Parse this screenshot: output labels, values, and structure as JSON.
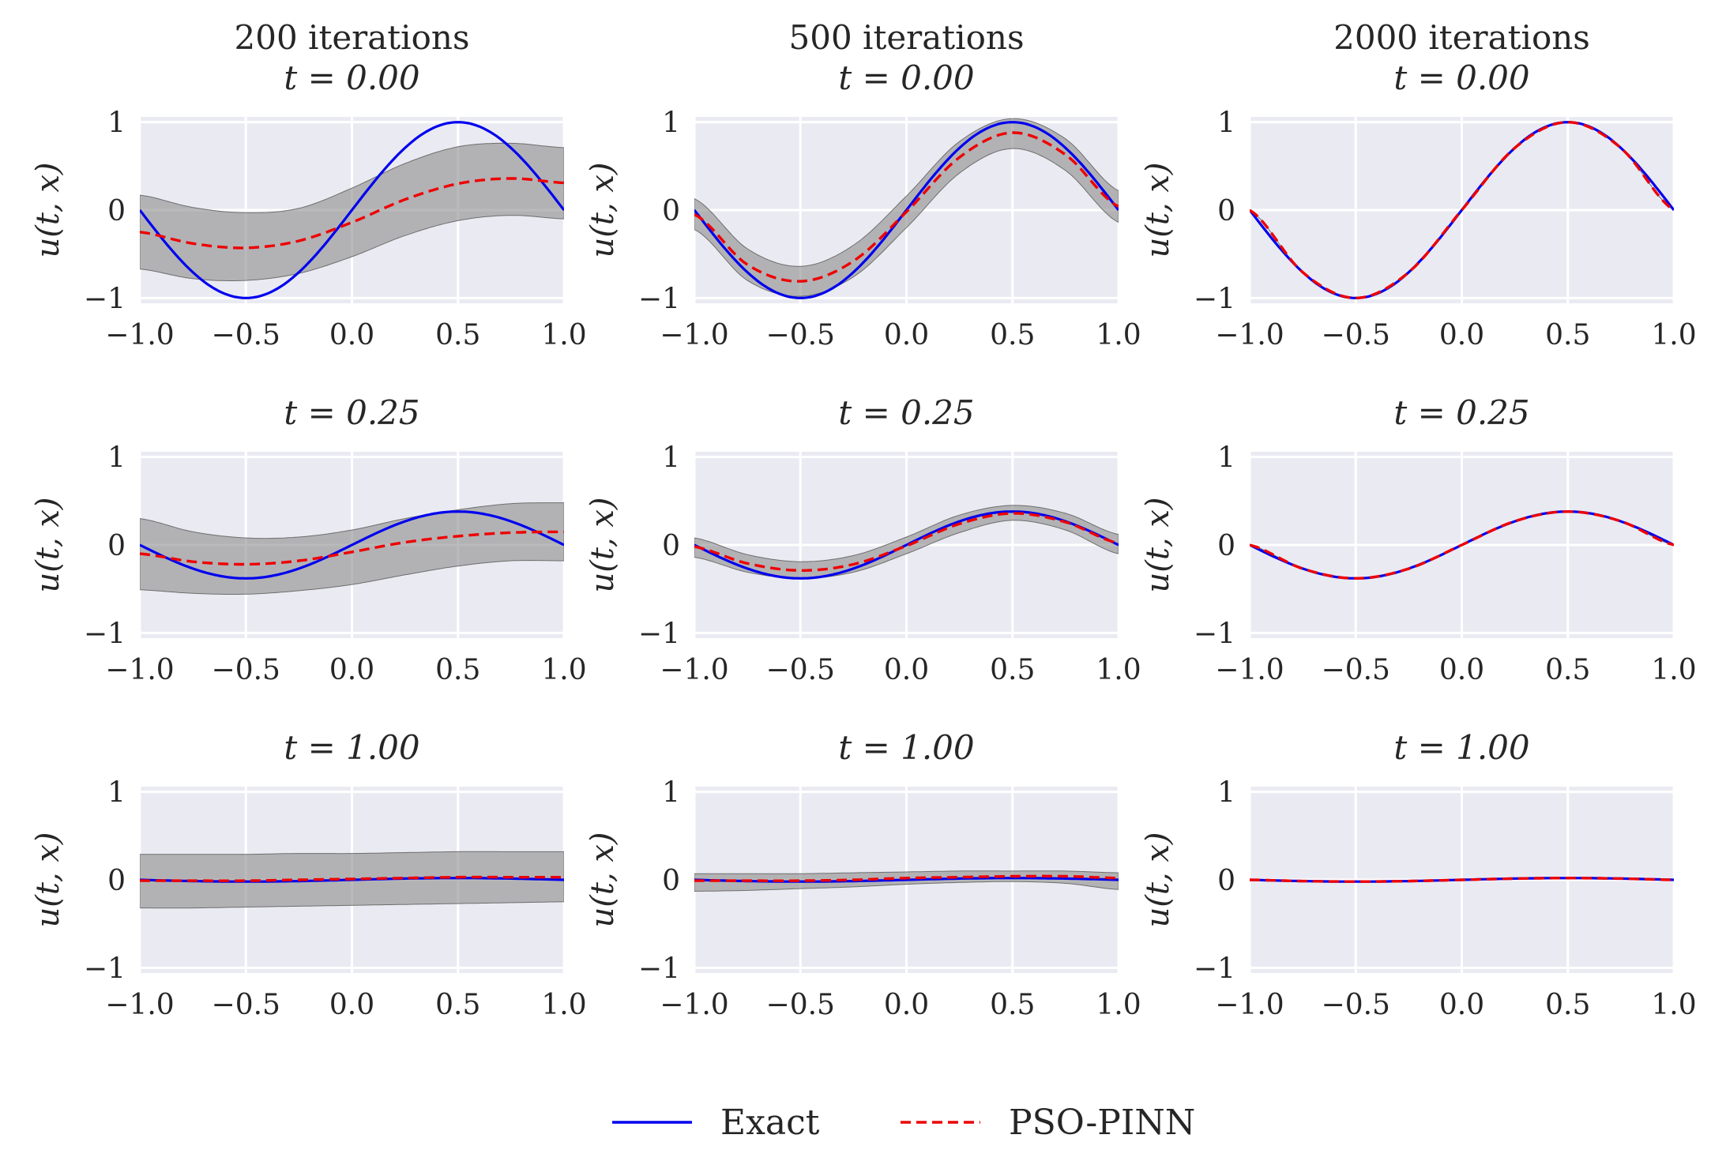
{
  "chart_data": {
    "type": "line",
    "grid": true,
    "rows": 3,
    "cols": 3,
    "xlim": [
      -1.0,
      1.0
    ],
    "ylim": [
      -1,
      1
    ],
    "xticks": [
      "−1.0",
      "−0.5",
      "0.0",
      "0.5",
      "1.0"
    ],
    "yticks": [
      "−1",
      "0",
      "1"
    ],
    "ylabel": "u(t, x)",
    "column_titles": [
      "200 iterations",
      "500 iterations",
      "2000 iterations"
    ],
    "row_titles": [
      "t = 0.00",
      "t = 0.25",
      "t = 1.00"
    ],
    "legend": {
      "placement": "bottom-center",
      "entries": [
        {
          "name": "Exact",
          "color": "#0000ee",
          "style": "solid"
        },
        {
          "name": "PSO-PINN",
          "color": "#ee0000",
          "style": "dashed"
        }
      ]
    },
    "colors": {
      "exact": "#0000ee",
      "predicted": "#ee0000",
      "band": "#8c8c8c",
      "background": "#eaeaf2",
      "grid": "#ffffff"
    },
    "exact_amplitude": [
      1.0,
      0.38,
      0.02
    ],
    "panels": [
      {
        "row": 0,
        "col": 0,
        "x": [
          -1.0,
          -0.75,
          -0.5,
          -0.25,
          0.0,
          0.25,
          0.5,
          0.75,
          1.0
        ],
        "mean": [
          -0.25,
          -0.38,
          -0.43,
          -0.35,
          -0.14,
          0.12,
          0.3,
          0.36,
          0.31
        ],
        "lower": [
          -0.67,
          -0.78,
          -0.8,
          -0.72,
          -0.53,
          -0.29,
          -0.12,
          -0.06,
          -0.1
        ],
        "upper": [
          0.17,
          0.03,
          -0.03,
          0.02,
          0.25,
          0.53,
          0.72,
          0.76,
          0.71
        ]
      },
      {
        "row": 0,
        "col": 1,
        "x": [
          -1.0,
          -0.75,
          -0.5,
          -0.25,
          0.0,
          0.25,
          0.5,
          0.75,
          1.0
        ],
        "mean": [
          -0.05,
          -0.62,
          -0.81,
          -0.58,
          -0.02,
          0.6,
          0.88,
          0.63,
          0.04
        ],
        "lower": [
          -0.22,
          -0.8,
          -0.98,
          -0.76,
          -0.2,
          0.42,
          0.7,
          0.45,
          -0.14
        ],
        "upper": [
          0.13,
          -0.44,
          -0.64,
          -0.4,
          0.16,
          0.78,
          1.04,
          0.81,
          0.22
        ]
      },
      {
        "row": 0,
        "col": 2,
        "x": [
          -1.0,
          -0.75,
          -0.5,
          -0.25,
          0.0,
          0.25,
          0.5,
          0.75,
          1.0
        ],
        "mean": [
          0.0,
          -0.707,
          -1.0,
          -0.707,
          0.0,
          0.707,
          1.0,
          0.707,
          0.0
        ],
        "lower": [
          0.0,
          -0.707,
          -1.0,
          -0.707,
          0.0,
          0.707,
          1.0,
          0.707,
          0.0
        ],
        "upper": [
          0.0,
          -0.707,
          -1.0,
          -0.707,
          0.0,
          0.707,
          1.0,
          0.707,
          0.0
        ]
      },
      {
        "row": 1,
        "col": 0,
        "x": [
          -1.0,
          -0.75,
          -0.5,
          -0.25,
          0.0,
          0.25,
          0.5,
          0.75,
          1.0
        ],
        "mean": [
          -0.1,
          -0.19,
          -0.22,
          -0.18,
          -0.08,
          0.03,
          0.1,
          0.14,
          0.15
        ],
        "lower": [
          -0.51,
          -0.55,
          -0.56,
          -0.52,
          -0.45,
          -0.34,
          -0.24,
          -0.18,
          -0.18
        ],
        "upper": [
          0.3,
          0.15,
          0.08,
          0.09,
          0.17,
          0.3,
          0.4,
          0.47,
          0.48
        ]
      },
      {
        "row": 1,
        "col": 1,
        "x": [
          -1.0,
          -0.75,
          -0.5,
          -0.25,
          0.0,
          0.25,
          0.5,
          0.75,
          1.0
        ],
        "mean": [
          -0.02,
          -0.21,
          -0.29,
          -0.22,
          -0.01,
          0.24,
          0.36,
          0.26,
          0.02
        ],
        "lower": [
          -0.14,
          -0.31,
          -0.38,
          -0.31,
          -0.1,
          0.14,
          0.28,
          0.17,
          -0.1
        ],
        "upper": [
          0.08,
          -0.11,
          -0.19,
          -0.12,
          0.09,
          0.34,
          0.45,
          0.36,
          0.12
        ]
      },
      {
        "row": 1,
        "col": 2,
        "x": [
          -1.0,
          -0.75,
          -0.5,
          -0.25,
          0.0,
          0.25,
          0.5,
          0.75,
          1.0
        ],
        "mean": [
          0.0,
          -0.27,
          -0.38,
          -0.27,
          0.0,
          0.27,
          0.38,
          0.27,
          0.0
        ],
        "lower": [
          0.0,
          -0.27,
          -0.38,
          -0.27,
          0.0,
          0.27,
          0.38,
          0.27,
          0.0
        ],
        "upper": [
          0.0,
          -0.27,
          -0.38,
          -0.27,
          0.0,
          0.27,
          0.38,
          0.27,
          0.0
        ]
      },
      {
        "row": 2,
        "col": 0,
        "x": [
          -1.0,
          -0.75,
          -0.5,
          -0.25,
          0.0,
          0.25,
          0.5,
          0.75,
          1.0
        ],
        "mean": [
          -0.01,
          -0.01,
          -0.01,
          0.0,
          0.01,
          0.02,
          0.03,
          0.03,
          0.03
        ],
        "lower": [
          -0.32,
          -0.32,
          -0.31,
          -0.3,
          -0.29,
          -0.28,
          -0.27,
          -0.26,
          -0.25
        ],
        "upper": [
          0.29,
          0.29,
          0.29,
          0.3,
          0.3,
          0.31,
          0.32,
          0.32,
          0.32
        ]
      },
      {
        "row": 2,
        "col": 1,
        "x": [
          -1.0,
          -0.75,
          -0.5,
          -0.25,
          0.0,
          0.25,
          0.5,
          0.75,
          1.0
        ],
        "mean": [
          -0.01,
          -0.01,
          -0.01,
          0.0,
          0.02,
          0.03,
          0.04,
          0.04,
          0.02
        ],
        "lower": [
          -0.13,
          -0.12,
          -0.1,
          -0.08,
          -0.05,
          -0.03,
          -0.02,
          -0.04,
          -0.11
        ],
        "upper": [
          0.07,
          0.07,
          0.07,
          0.08,
          0.09,
          0.1,
          0.1,
          0.1,
          0.08
        ]
      },
      {
        "row": 2,
        "col": 2,
        "x": [
          -1.0,
          -0.75,
          -0.5,
          -0.25,
          0.0,
          0.25,
          0.5,
          0.75,
          1.0
        ],
        "mean": [
          0.0,
          -0.014,
          -0.02,
          -0.014,
          0.0,
          0.014,
          0.02,
          0.014,
          0.0
        ],
        "lower": [
          0.0,
          -0.014,
          -0.02,
          -0.014,
          0.0,
          0.014,
          0.02,
          0.014,
          0.0
        ],
        "upper": [
          0.0,
          -0.014,
          -0.02,
          -0.014,
          0.0,
          0.014,
          0.02,
          0.014,
          0.0
        ]
      }
    ]
  }
}
